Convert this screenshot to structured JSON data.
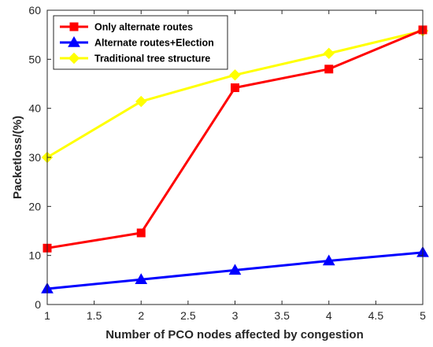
{
  "chart_data": {
    "type": "line",
    "title": "",
    "xlabel": "Number of PCO nodes affected by congestion",
    "ylabel": "Packetloss/(%)",
    "xlim": [
      1,
      5
    ],
    "ylim": [
      0,
      60
    ],
    "xticks": [
      "1",
      "1.5",
      "2",
      "2.5",
      "3",
      "3.5",
      "4",
      "4.5",
      "5"
    ],
    "yticks": [
      "0",
      "10",
      "20",
      "30",
      "40",
      "50",
      "60"
    ],
    "grid": false,
    "legend_position": "top-left",
    "x": [
      1,
      2,
      3,
      4,
      5
    ],
    "series": [
      {
        "name": "Only alternate routes",
        "values": [
          11.5,
          14.6,
          44.2,
          48.0,
          56.0
        ],
        "color": "#ff0000",
        "marker": "square"
      },
      {
        "name": "Alternate routes+Election",
        "values": [
          3.2,
          5.1,
          7.0,
          8.9,
          10.6
        ],
        "color": "#0000ff",
        "marker": "triangle"
      },
      {
        "name": "Traditional tree structure",
        "values": [
          30.0,
          41.4,
          46.8,
          51.2,
          55.8
        ],
        "color": "#ffff00",
        "marker": "diamond"
      }
    ]
  }
}
